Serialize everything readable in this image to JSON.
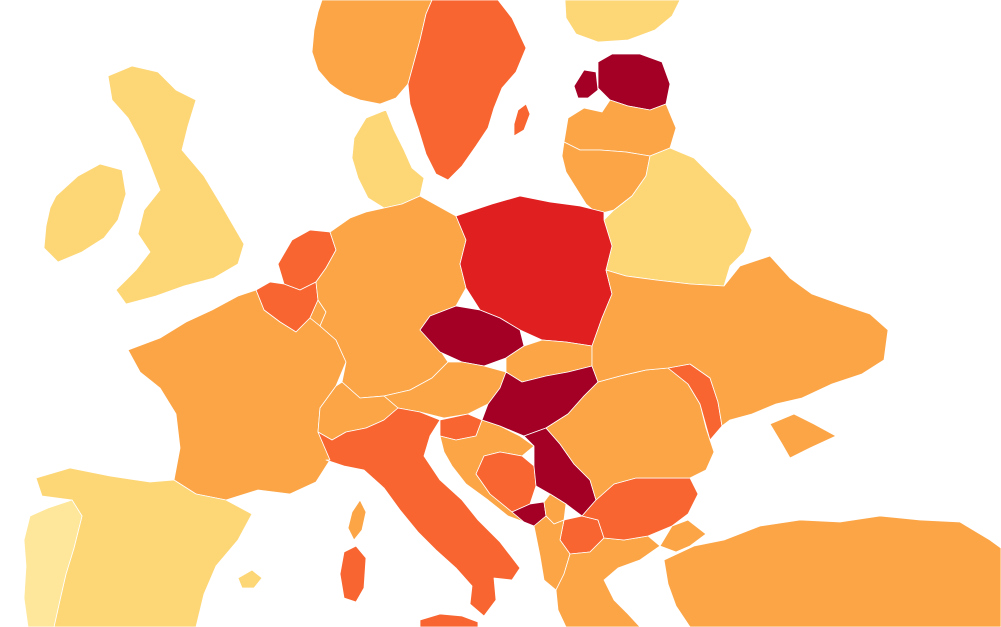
{
  "map": {
    "background": "#ffffff",
    "border_color": "#ffffff"
  },
  "palette": {
    "level1": "#fee79a",
    "level2": "#fdd676",
    "level3": "#fba547",
    "level4": "#f86530",
    "level5": "#e02020",
    "level6": "#a40026"
  },
  "countries": [
    {
      "id": "portugal",
      "level": "level1"
    },
    {
      "id": "spain",
      "level": "level2"
    },
    {
      "id": "ireland",
      "level": "level2"
    },
    {
      "id": "united-kingdom",
      "level": "level2"
    },
    {
      "id": "iceland-faroe",
      "level": "level2"
    },
    {
      "id": "france",
      "level": "level3"
    },
    {
      "id": "belgium",
      "level": "level4"
    },
    {
      "id": "netherlands",
      "level": "level4"
    },
    {
      "id": "luxembourg",
      "level": "level3"
    },
    {
      "id": "denmark",
      "level": "level2"
    },
    {
      "id": "norway",
      "level": "level3"
    },
    {
      "id": "sweden",
      "level": "level4"
    },
    {
      "id": "finland",
      "level": "level2"
    },
    {
      "id": "estonia",
      "level": "level6"
    },
    {
      "id": "latvia",
      "level": "level3"
    },
    {
      "id": "lithuania",
      "level": "level3"
    },
    {
      "id": "belarus",
      "level": "level2"
    },
    {
      "id": "germany",
      "level": "level3"
    },
    {
      "id": "poland",
      "level": "level5"
    },
    {
      "id": "czechia",
      "level": "level6"
    },
    {
      "id": "slovakia",
      "level": "level3"
    },
    {
      "id": "austria",
      "level": "level3"
    },
    {
      "id": "switzerland",
      "level": "level3"
    },
    {
      "id": "italy",
      "level": "level4"
    },
    {
      "id": "sicily",
      "level": "level4"
    },
    {
      "id": "sardinia",
      "level": "level4"
    },
    {
      "id": "corsica",
      "level": "level3"
    },
    {
      "id": "slovenia",
      "level": "level4"
    },
    {
      "id": "croatia",
      "level": "level3"
    },
    {
      "id": "bosnia",
      "level": "level4"
    },
    {
      "id": "hungary",
      "level": "level6"
    },
    {
      "id": "serbia",
      "level": "level6"
    },
    {
      "id": "montenegro",
      "level": "level6"
    },
    {
      "id": "kosovo",
      "level": "level3"
    },
    {
      "id": "north-macedonia",
      "level": "level4"
    },
    {
      "id": "albania",
      "level": "level3"
    },
    {
      "id": "greece",
      "level": "level3"
    },
    {
      "id": "bulgaria",
      "level": "level4"
    },
    {
      "id": "romania",
      "level": "level3"
    },
    {
      "id": "moldova",
      "level": "level4"
    },
    {
      "id": "ukraine",
      "level": "level3"
    },
    {
      "id": "crimea",
      "level": "level3"
    },
    {
      "id": "turkey",
      "level": "level3"
    },
    {
      "id": "balearics",
      "level": "level2"
    },
    {
      "id": "gotland",
      "level": "level4"
    }
  ]
}
